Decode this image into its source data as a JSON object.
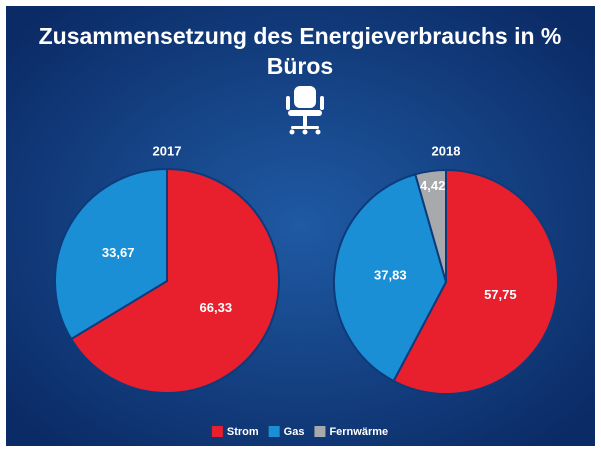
{
  "header": {
    "title": "Zusammensetzung des Energieverbrauchs in %",
    "subtitle": "Büros"
  },
  "chart_data": [
    {
      "type": "pie",
      "title": "2017",
      "categories": [
        "Strom",
        "Gas"
      ],
      "values": [
        66.33,
        33.67
      ],
      "value_labels": [
        "66,33",
        "33,67"
      ],
      "colors": [
        "#e8202e",
        "#1b8fd6"
      ]
    },
    {
      "type": "pie",
      "title": "2018",
      "categories": [
        "Strom",
        "Gas",
        "Fernwärme"
      ],
      "values": [
        57.75,
        37.83,
        4.42
      ],
      "value_labels": [
        "57,75",
        "37,83",
        "4,42"
      ],
      "colors": [
        "#e8202e",
        "#1b8fd6",
        "#a7a9ac"
      ]
    }
  ]
}
